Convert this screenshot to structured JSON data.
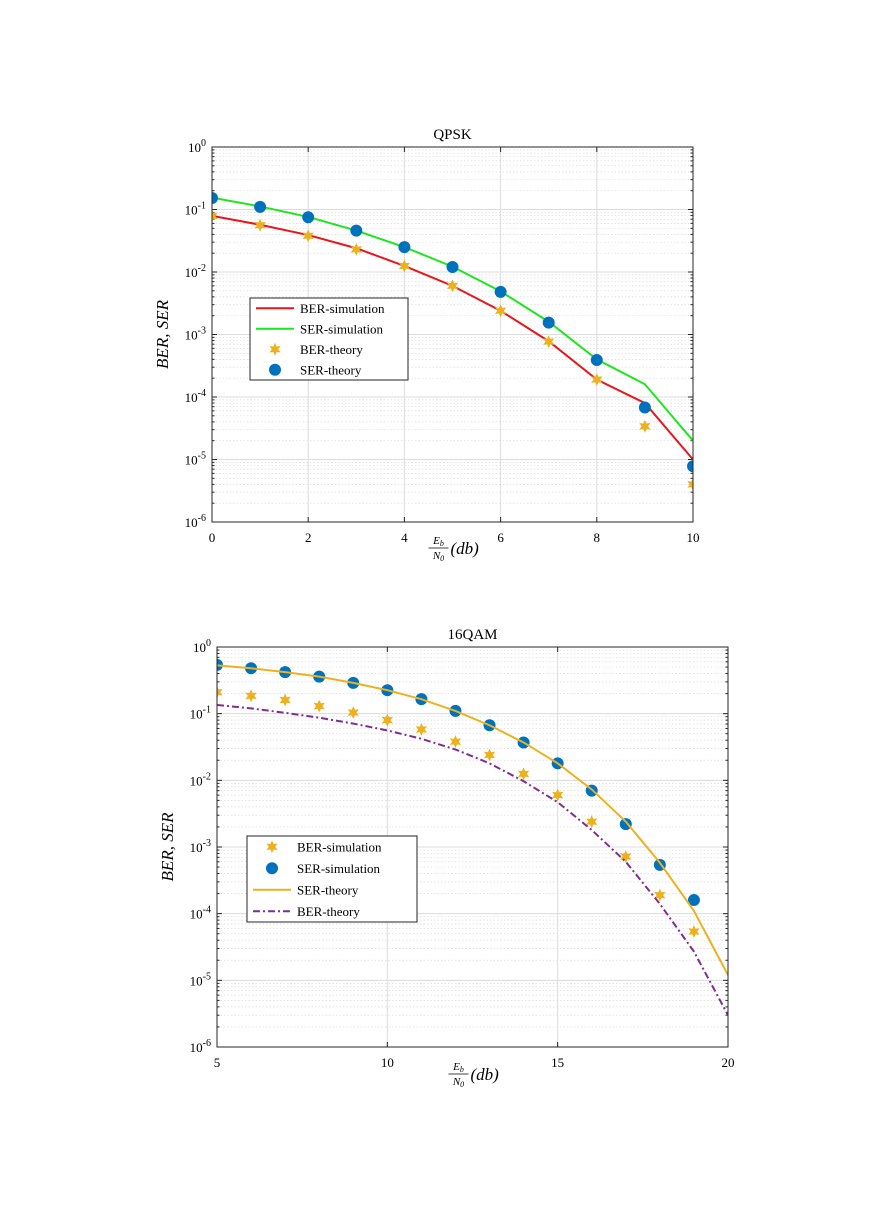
{
  "colors": {
    "ber_sim_qpsk": "#e8161b",
    "ser_sim_qpsk": "#1ee61e",
    "theory_star": "#edb120",
    "marker_blue": "#0072bd",
    "ser_theory_16qam": "#edb120",
    "ber_theory_16qam": "#7e2f8e"
  },
  "chart_data": [
    {
      "type": "line",
      "title": "QPSK",
      "ylabel": "BER, SER",
      "xlabel_num": "E",
      "xlabel_num_sub": "b",
      "xlabel_den": "N",
      "xlabel_den_sub": "0",
      "xlabel_suffix": "(db)",
      "yscale": "log",
      "xlim": [
        0,
        10
      ],
      "ylim_exp": [
        -6,
        0
      ],
      "xticks": [
        0,
        2,
        4,
        6,
        8,
        10
      ],
      "ytick_base": "10",
      "ytick_exps": [
        "0",
        "-1",
        "-2",
        "-3",
        "-4",
        "-5",
        "-6"
      ],
      "grid": true,
      "legend_position": "left-middle",
      "series": [
        {
          "name": "BER-simulation",
          "style": "line",
          "color": "#e8161b",
          "x": [
            0,
            1,
            2,
            3,
            4,
            5,
            6,
            7,
            8,
            9,
            10
          ],
          "y": [
            0.079,
            0.057,
            0.039,
            0.024,
            0.0125,
            0.006,
            0.0024,
            0.00078,
            0.00019,
            8e-05,
            1e-05
          ]
        },
        {
          "name": "SER-simulation",
          "style": "line",
          "color": "#1ee61e",
          "x": [
            0,
            1,
            2,
            3,
            4,
            5,
            6,
            7,
            8,
            9,
            10
          ],
          "y": [
            0.155,
            0.112,
            0.076,
            0.046,
            0.025,
            0.0122,
            0.0049,
            0.0016,
            0.0004,
            0.00016,
            2e-05
          ]
        },
        {
          "name": "BER-theory",
          "style": "star",
          "color": "#edb120",
          "x": [
            0,
            1,
            2,
            3,
            4,
            5,
            6,
            7,
            8,
            9,
            10
          ],
          "y": [
            0.079,
            0.056,
            0.038,
            0.023,
            0.0125,
            0.006,
            0.0024,
            0.00077,
            0.00019,
            3.4e-05,
            4e-06
          ]
        },
        {
          "name": "SER-theory",
          "style": "dot",
          "color": "#0072bd",
          "x": [
            0,
            1,
            2,
            3,
            4,
            5,
            6,
            7,
            8,
            9,
            10
          ],
          "y": [
            0.153,
            0.11,
            0.075,
            0.046,
            0.025,
            0.012,
            0.0048,
            0.00155,
            0.00039,
            6.8e-05,
            7.8e-06
          ]
        }
      ]
    },
    {
      "type": "line",
      "title": "16QAM",
      "ylabel": "BER, SER",
      "xlabel_num": "E",
      "xlabel_num_sub": "b",
      "xlabel_den": "N",
      "xlabel_den_sub": "0",
      "xlabel_suffix": "(db)",
      "yscale": "log",
      "xlim": [
        5,
        20
      ],
      "ylim_exp": [
        -6,
        0
      ],
      "xticks": [
        5,
        10,
        15,
        20
      ],
      "ytick_base": "10",
      "ytick_exps": [
        "0",
        "-1",
        "-2",
        "-3",
        "-4",
        "-5",
        "-6"
      ],
      "grid": true,
      "legend_position": "left-middle",
      "series": [
        {
          "name": "BER-simulation",
          "style": "star",
          "color": "#edb120",
          "x": [
            5,
            6,
            7,
            8,
            9,
            10,
            11,
            12,
            13,
            14,
            15,
            16,
            17,
            18,
            19
          ],
          "y": [
            0.21,
            0.185,
            0.16,
            0.13,
            0.104,
            0.08,
            0.058,
            0.038,
            0.024,
            0.0125,
            0.006,
            0.0024,
            0.00072,
            0.00019,
            5.4e-05
          ]
        },
        {
          "name": "SER-simulation",
          "style": "dot",
          "color": "#0072bd",
          "x": [
            5,
            6,
            7,
            8,
            9,
            10,
            11,
            12,
            13,
            14,
            15,
            16,
            17,
            18,
            19
          ],
          "y": [
            0.54,
            0.48,
            0.42,
            0.36,
            0.29,
            0.225,
            0.165,
            0.11,
            0.067,
            0.037,
            0.018,
            0.007,
            0.0022,
            0.00054,
            0.00016
          ]
        },
        {
          "name": "SER-theory",
          "style": "line",
          "color": "#edb120",
          "x": [
            5,
            6,
            7,
            8,
            9,
            10,
            11,
            12,
            13,
            14,
            15,
            16,
            17,
            18,
            19,
            20
          ],
          "y": [
            0.53,
            0.48,
            0.42,
            0.36,
            0.29,
            0.225,
            0.165,
            0.11,
            0.067,
            0.037,
            0.018,
            0.0073,
            0.0024,
            0.00058,
            0.00011,
            1.2e-05
          ]
        },
        {
          "name": "BER-theory",
          "style": "dashdot",
          "color": "#7e2f8e",
          "x": [
            5,
            6,
            7,
            8,
            9,
            10,
            11,
            12,
            13,
            14,
            15,
            16,
            17,
            18,
            19,
            20
          ],
          "y": [
            0.135,
            0.12,
            0.103,
            0.087,
            0.071,
            0.056,
            0.042,
            0.029,
            0.018,
            0.0097,
            0.0047,
            0.0018,
            0.0006,
            0.00014,
            2.7e-05,
            3e-06
          ]
        }
      ]
    }
  ]
}
